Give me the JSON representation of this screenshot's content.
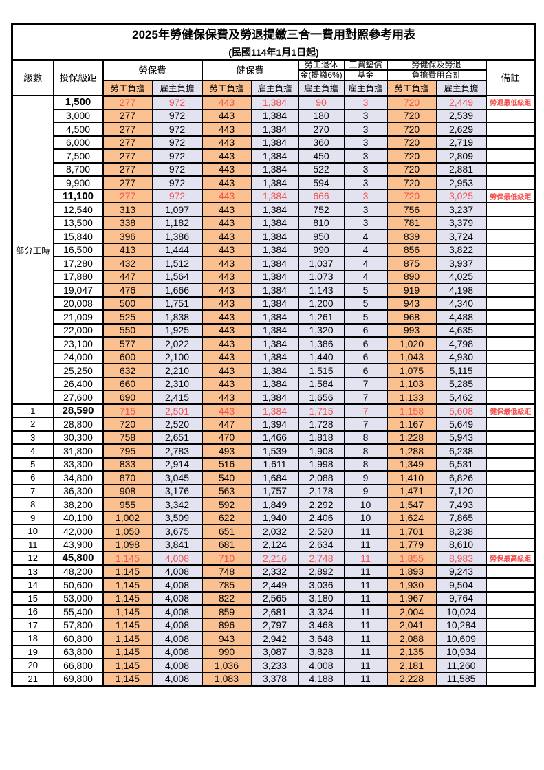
{
  "title": "2025年勞健保保費及勞退提繳三合一費用對照參考用表",
  "subtitle": "(民國114年1月1日起)",
  "header": {
    "level": "級數",
    "bracket": "投保級距",
    "labor_insurance": "勞保費",
    "health_insurance": "健保費",
    "pension_line1": "勞工退休",
    "pension_line2": "金(提繳6%)",
    "wage_fund_line1": "工資墊償",
    "wage_fund_line2": "基金",
    "total_line1": "勞健保及勞退",
    "total_line2": "負擔費用合計",
    "remark": "備註",
    "employee": "勞工負擔",
    "employer": "雇主負擔"
  },
  "part_time": {
    "label": "部分工時",
    "rowspan": 23
  },
  "colors": {
    "employee_bg": "#fac090",
    "employer_bg": "#e3e2f1",
    "highlight_text": "#f4524e",
    "border": "#000000"
  },
  "rows": [
    {
      "bracket": "1,500",
      "v": [
        "277",
        "972",
        "443",
        "1,384",
        "90",
        "3",
        "720",
        "2,449"
      ],
      "remark": "勞退最低級距",
      "hl": true
    },
    {
      "bracket": "3,000",
      "v": [
        "277",
        "972",
        "443",
        "1,384",
        "180",
        "3",
        "720",
        "2,539"
      ]
    },
    {
      "bracket": "4,500",
      "v": [
        "277",
        "972",
        "443",
        "1,384",
        "270",
        "3",
        "720",
        "2,629"
      ]
    },
    {
      "bracket": "6,000",
      "v": [
        "277",
        "972",
        "443",
        "1,384",
        "360",
        "3",
        "720",
        "2,719"
      ]
    },
    {
      "bracket": "7,500",
      "v": [
        "277",
        "972",
        "443",
        "1,384",
        "450",
        "3",
        "720",
        "2,809"
      ]
    },
    {
      "bracket": "8,700",
      "v": [
        "277",
        "972",
        "443",
        "1,384",
        "522",
        "3",
        "720",
        "2,881"
      ]
    },
    {
      "bracket": "9,900",
      "v": [
        "277",
        "972",
        "443",
        "1,384",
        "594",
        "3",
        "720",
        "2,953"
      ]
    },
    {
      "bracket": "11,100",
      "v": [
        "277",
        "972",
        "443",
        "1,384",
        "666",
        "3",
        "720",
        "3,025"
      ],
      "remark": "勞保最低級距",
      "hl": true
    },
    {
      "bracket": "12,540",
      "v": [
        "313",
        "1,097",
        "443",
        "1,384",
        "752",
        "3",
        "756",
        "3,237"
      ]
    },
    {
      "bracket": "13,500",
      "v": [
        "338",
        "1,182",
        "443",
        "1,384",
        "810",
        "3",
        "781",
        "3,379"
      ]
    },
    {
      "bracket": "15,840",
      "v": [
        "396",
        "1,386",
        "443",
        "1,384",
        "950",
        "4",
        "839",
        "3,724"
      ]
    },
    {
      "bracket": "16,500",
      "v": [
        "413",
        "1,444",
        "443",
        "1,384",
        "990",
        "4",
        "856",
        "3,822"
      ]
    },
    {
      "bracket": "17,280",
      "v": [
        "432",
        "1,512",
        "443",
        "1,384",
        "1,037",
        "4",
        "875",
        "3,937"
      ]
    },
    {
      "bracket": "17,880",
      "v": [
        "447",
        "1,564",
        "443",
        "1,384",
        "1,073",
        "4",
        "890",
        "4,025"
      ]
    },
    {
      "bracket": "19,047",
      "v": [
        "476",
        "1,666",
        "443",
        "1,384",
        "1,143",
        "5",
        "919",
        "4,198"
      ]
    },
    {
      "bracket": "20,008",
      "v": [
        "500",
        "1,751",
        "443",
        "1,384",
        "1,200",
        "5",
        "943",
        "4,340"
      ]
    },
    {
      "bracket": "21,009",
      "v": [
        "525",
        "1,838",
        "443",
        "1,384",
        "1,261",
        "5",
        "968",
        "4,488"
      ]
    },
    {
      "bracket": "22,000",
      "v": [
        "550",
        "1,925",
        "443",
        "1,384",
        "1,320",
        "6",
        "993",
        "4,635"
      ]
    },
    {
      "bracket": "23,100",
      "v": [
        "577",
        "2,022",
        "443",
        "1,384",
        "1,386",
        "6",
        "1,020",
        "4,798"
      ]
    },
    {
      "bracket": "24,000",
      "v": [
        "600",
        "2,100",
        "443",
        "1,384",
        "1,440",
        "6",
        "1,043",
        "4,930"
      ]
    },
    {
      "bracket": "25,250",
      "v": [
        "632",
        "2,210",
        "443",
        "1,384",
        "1,515",
        "6",
        "1,075",
        "5,115"
      ]
    },
    {
      "bracket": "26,400",
      "v": [
        "660",
        "2,310",
        "443",
        "1,384",
        "1,584",
        "7",
        "1,103",
        "5,285"
      ]
    },
    {
      "bracket": "27,600",
      "v": [
        "690",
        "2,415",
        "443",
        "1,384",
        "1,656",
        "7",
        "1,133",
        "5,462"
      ]
    },
    {
      "level": "1",
      "bracket": "28,590",
      "v": [
        "715",
        "2,501",
        "443",
        "1,384",
        "1,715",
        "7",
        "1,158",
        "5,608"
      ],
      "remark": "健保最低級距",
      "hl": true,
      "section": true
    },
    {
      "level": "2",
      "bracket": "28,800",
      "v": [
        "720",
        "2,520",
        "447",
        "1,394",
        "1,728",
        "7",
        "1,167",
        "5,649"
      ]
    },
    {
      "level": "3",
      "bracket": "30,300",
      "v": [
        "758",
        "2,651",
        "470",
        "1,466",
        "1,818",
        "8",
        "1,228",
        "5,943"
      ]
    },
    {
      "level": "4",
      "bracket": "31,800",
      "v": [
        "795",
        "2,783",
        "493",
        "1,539",
        "1,908",
        "8",
        "1,288",
        "6,238"
      ]
    },
    {
      "level": "5",
      "bracket": "33,300",
      "v": [
        "833",
        "2,914",
        "516",
        "1,611",
        "1,998",
        "8",
        "1,349",
        "6,531"
      ]
    },
    {
      "level": "6",
      "bracket": "34,800",
      "v": [
        "870",
        "3,045",
        "540",
        "1,684",
        "2,088",
        "9",
        "1,410",
        "6,826"
      ]
    },
    {
      "level": "7",
      "bracket": "36,300",
      "v": [
        "908",
        "3,176",
        "563",
        "1,757",
        "2,178",
        "9",
        "1,471",
        "7,120"
      ]
    },
    {
      "level": "8",
      "bracket": "38,200",
      "v": [
        "955",
        "3,342",
        "592",
        "1,849",
        "2,292",
        "10",
        "1,547",
        "7,493"
      ]
    },
    {
      "level": "9",
      "bracket": "40,100",
      "v": [
        "1,002",
        "3,509",
        "622",
        "1,940",
        "2,406",
        "10",
        "1,624",
        "7,865"
      ]
    },
    {
      "level": "10",
      "bracket": "42,000",
      "v": [
        "1,050",
        "3,675",
        "651",
        "2,032",
        "2,520",
        "11",
        "1,701",
        "8,238"
      ]
    },
    {
      "level": "11",
      "bracket": "43,900",
      "v": [
        "1,098",
        "3,841",
        "681",
        "2,124",
        "2,634",
        "11",
        "1,779",
        "8,610"
      ]
    },
    {
      "level": "12",
      "bracket": "45,800",
      "v": [
        "1,145",
        "4,008",
        "710",
        "2,216",
        "2,748",
        "11",
        "1,855",
        "8,983"
      ],
      "remark": "勞保最高級距",
      "hl": true
    },
    {
      "level": "13",
      "bracket": "48,200",
      "v": [
        "1,145",
        "4,008",
        "748",
        "2,332",
        "2,892",
        "11",
        "1,893",
        "9,243"
      ]
    },
    {
      "level": "14",
      "bracket": "50,600",
      "v": [
        "1,145",
        "4,008",
        "785",
        "2,449",
        "3,036",
        "11",
        "1,930",
        "9,504"
      ]
    },
    {
      "level": "15",
      "bracket": "53,000",
      "v": [
        "1,145",
        "4,008",
        "822",
        "2,565",
        "3,180",
        "11",
        "1,967",
        "9,764"
      ]
    },
    {
      "level": "16",
      "bracket": "55,400",
      "v": [
        "1,145",
        "4,008",
        "859",
        "2,681",
        "3,324",
        "11",
        "2,004",
        "10,024"
      ]
    },
    {
      "level": "17",
      "bracket": "57,800",
      "v": [
        "1,145",
        "4,008",
        "896",
        "2,797",
        "3,468",
        "11",
        "2,041",
        "10,284"
      ]
    },
    {
      "level": "18",
      "bracket": "60,800",
      "v": [
        "1,145",
        "4,008",
        "943",
        "2,942",
        "3,648",
        "11",
        "2,088",
        "10,609"
      ]
    },
    {
      "level": "19",
      "bracket": "63,800",
      "v": [
        "1,145",
        "4,008",
        "990",
        "3,087",
        "3,828",
        "11",
        "2,135",
        "10,934"
      ]
    },
    {
      "level": "20",
      "bracket": "66,800",
      "v": [
        "1,145",
        "4,008",
        "1,036",
        "3,233",
        "4,008",
        "11",
        "2,181",
        "11,260"
      ]
    },
    {
      "level": "21",
      "bracket": "69,800",
      "v": [
        "1,145",
        "4,008",
        "1,083",
        "3,378",
        "4,188",
        "11",
        "2,228",
        "11,585"
      ]
    }
  ]
}
